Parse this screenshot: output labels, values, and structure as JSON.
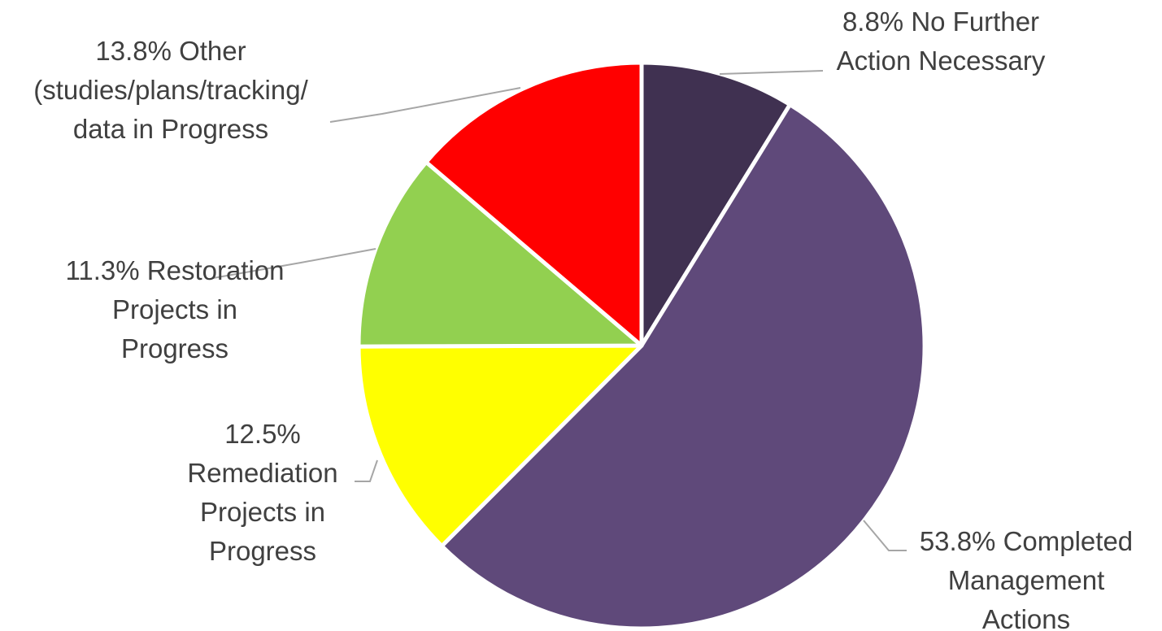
{
  "chart_data": {
    "type": "pie",
    "title": "",
    "slices": [
      {
        "label_lines": [
          "8.8% No Further",
          "Action Necessary"
        ],
        "value": 8.8,
        "color": "#403151"
      },
      {
        "label_lines": [
          "53.8% Completed",
          "Management",
          "Actions"
        ],
        "value": 53.8,
        "color": "#5f497a"
      },
      {
        "label_lines": [
          "12.5%",
          "Remediation",
          "Projects in",
          "Progress"
        ],
        "value": 12.5,
        "color": "#ffff00"
      },
      {
        "label_lines": [
          "11.3% Restoration",
          "Projects in",
          "Progress"
        ],
        "value": 11.3,
        "color": "#92d050"
      },
      {
        "label_lines": [
          "13.8% Other",
          "(studies/plans/tracking/",
          "data in Progress"
        ],
        "value": 13.8,
        "color": "#ff0000"
      }
    ],
    "start": "12 o'clock",
    "direction": "clockwise",
    "legend": "none",
    "labels": "outside with leader lines"
  }
}
